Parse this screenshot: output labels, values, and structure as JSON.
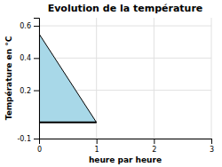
{
  "chart_data": {
    "type": "area",
    "title": "Evolution de la température",
    "xlabel": "heure par heure",
    "ylabel": "Température en °C",
    "x": [
      0,
      1
    ],
    "values": [
      0.55,
      0.0
    ],
    "color": "#a8d8e8",
    "xlim": [
      0,
      3
    ],
    "ylim": [
      -0.1,
      0.65
    ],
    "xticks": [
      0,
      1,
      2,
      3
    ],
    "yticks": [
      -0.1,
      0.2,
      0.4,
      0.6
    ],
    "grid": true
  }
}
